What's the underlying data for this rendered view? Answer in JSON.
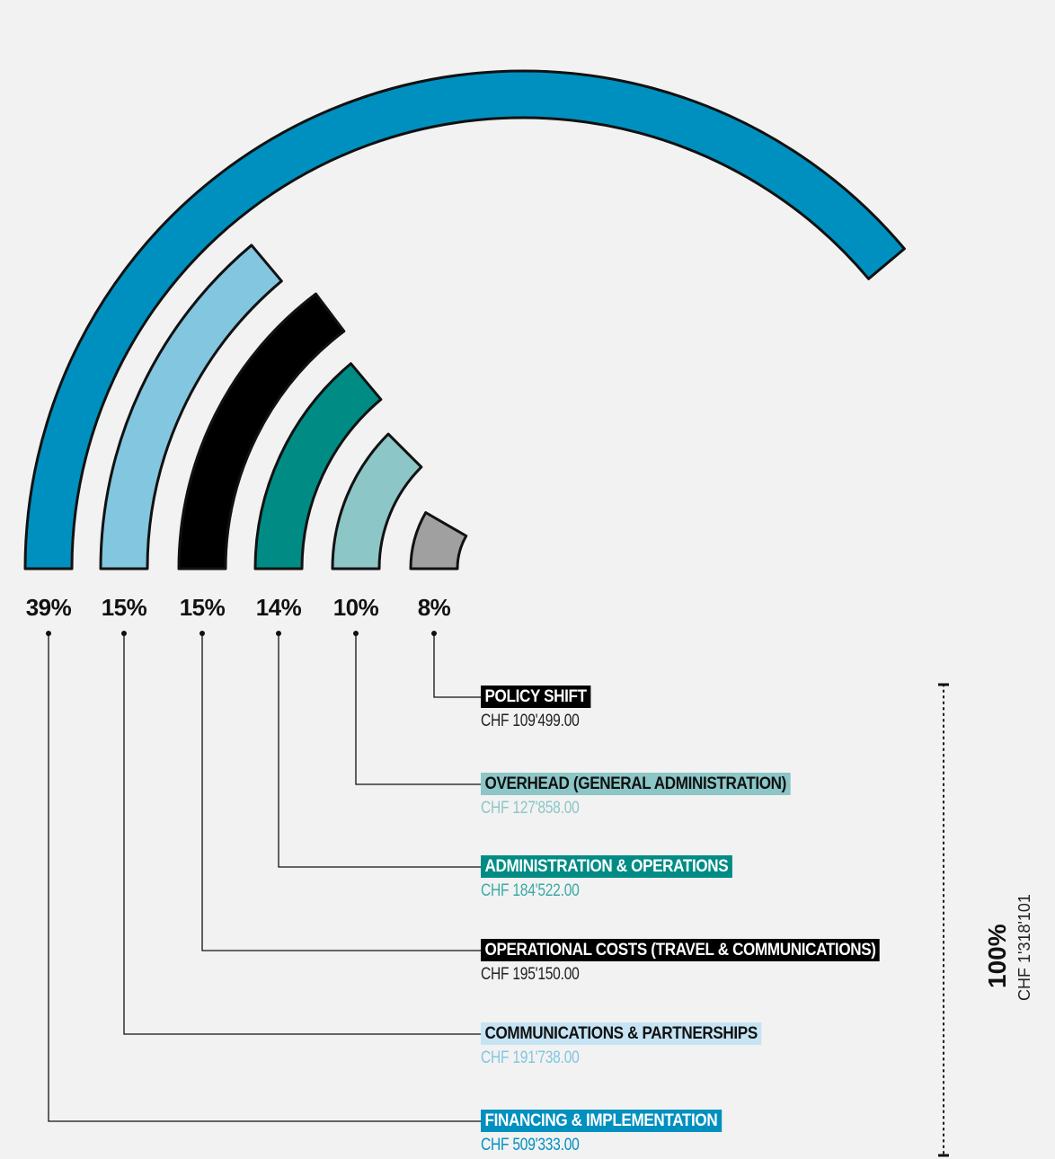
{
  "chart_data": {
    "type": "radial_bar",
    "categories": [
      "FINANCING & IMPLEMENTATION",
      "COMMUNICATIONS & PARTNERSHIPS",
      "OPERATIONAL COSTS (TRAVEL & COMMUNICATIONS)",
      "ADMINISTRATION & OPERATIONS",
      "OVERHEAD (GENERAL ADMINISTRATION)",
      "POLICY SHIFT"
    ],
    "values": [
      39,
      15,
      15,
      14,
      10,
      8
    ],
    "percent_labels": [
      "39%",
      "15%",
      "15%",
      "14%",
      "10%",
      "8%"
    ],
    "amounts": [
      "CHF 509'333.00",
      "CHF 191'738.00",
      "CHF 195'150.00",
      "CHF 184'522.00",
      "CHF 127'858.00",
      "CHF 109'499.00"
    ],
    "colors": [
      "#0090bf",
      "#83c6e0",
      "#000000",
      "#008c85",
      "#8cc6c6",
      "#a0a0a0"
    ],
    "label_bg_colors": [
      "#0090bf",
      "#c5e3f2",
      "#000000",
      "#008c85",
      "#8cc6c6",
      "#000000"
    ],
    "label_text_colors": [
      "#ffffff",
      "#111111",
      "#ffffff",
      "#ffffff",
      "#111111",
      "#ffffff"
    ],
    "amount_colors": [
      "#0090bf",
      "#83c6e0",
      "#222222",
      "#3aaaa5",
      "#8cc6c6",
      "#222222"
    ],
    "total": {
      "percent": "100%",
      "amount": "CHF 1'318'101"
    }
  }
}
